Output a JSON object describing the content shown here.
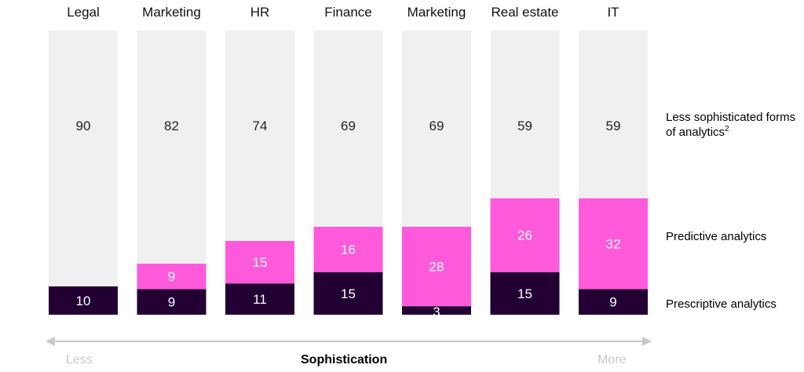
{
  "chart_data": {
    "type": "bar",
    "stacked": true,
    "percent": true,
    "categories": [
      "Legal",
      "Marketing",
      "HR",
      "Finance",
      "Marketing",
      "Real estate",
      "IT"
    ],
    "series": [
      {
        "name": "Prescriptive analytics",
        "values": [
          10,
          9,
          11,
          15,
          3,
          15,
          9
        ],
        "color": "#220033"
      },
      {
        "name": "Predictive analytics",
        "values": [
          0,
          9,
          15,
          16,
          28,
          26,
          32
        ],
        "color": "#ff5adb"
      },
      {
        "name": "Less sophisticated forms of analytics",
        "name_suffix": "2",
        "values": [
          90,
          82,
          74,
          69,
          69,
          59,
          59
        ],
        "color": "#f0f0f0"
      }
    ],
    "legend_placement": "right",
    "xlabel": "Sophistication",
    "axis_left_label": "Less",
    "axis_right_label": "More",
    "ylim": [
      0,
      100
    ],
    "grid": false
  }
}
